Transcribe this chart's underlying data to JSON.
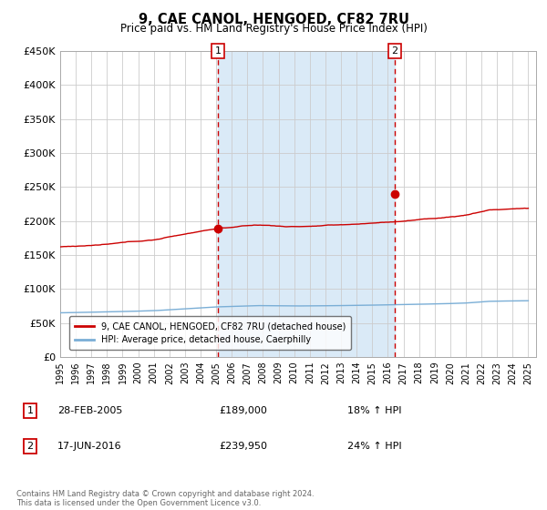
{
  "title": "9, CAE CANOL, HENGOED, CF82 7RU",
  "subtitle": "Price paid vs. HM Land Registry's House Price Index (HPI)",
  "ylim": [
    0,
    450000
  ],
  "yticks": [
    0,
    50000,
    100000,
    150000,
    200000,
    250000,
    300000,
    350000,
    400000,
    450000
  ],
  "ytick_labels": [
    "£0",
    "£50K",
    "£100K",
    "£150K",
    "£200K",
    "£250K",
    "£300K",
    "£350K",
    "£400K",
    "£450K"
  ],
  "x_start_year": 1995,
  "x_end_year": 2025,
  "sale1_date_decimal": 2005.12,
  "sale1_price": 189000,
  "sale1_label": "1",
  "sale1_text": "28-FEB-2005",
  "sale1_amount": "£189,000",
  "sale1_hpi": "18% ↑ HPI",
  "sale2_date_decimal": 2016.45,
  "sale2_price": 239950,
  "sale2_label": "2",
  "sale2_text": "17-JUN-2016",
  "sale2_amount": "£239,950",
  "sale2_hpi": "24% ↑ HPI",
  "red_line_color": "#cc0000",
  "blue_line_color": "#7aaed6",
  "bg_shaded_color": "#daeaf7",
  "vline_color": "#cc0000",
  "grid_color": "#cccccc",
  "legend_label_red": "9, CAE CANOL, HENGOED, CF82 7RU (detached house)",
  "legend_label_blue": "HPI: Average price, detached house, Caerphilly",
  "footer_text": "Contains HM Land Registry data © Crown copyright and database right 2024.\nThis data is licensed under the Open Government Licence v3.0."
}
